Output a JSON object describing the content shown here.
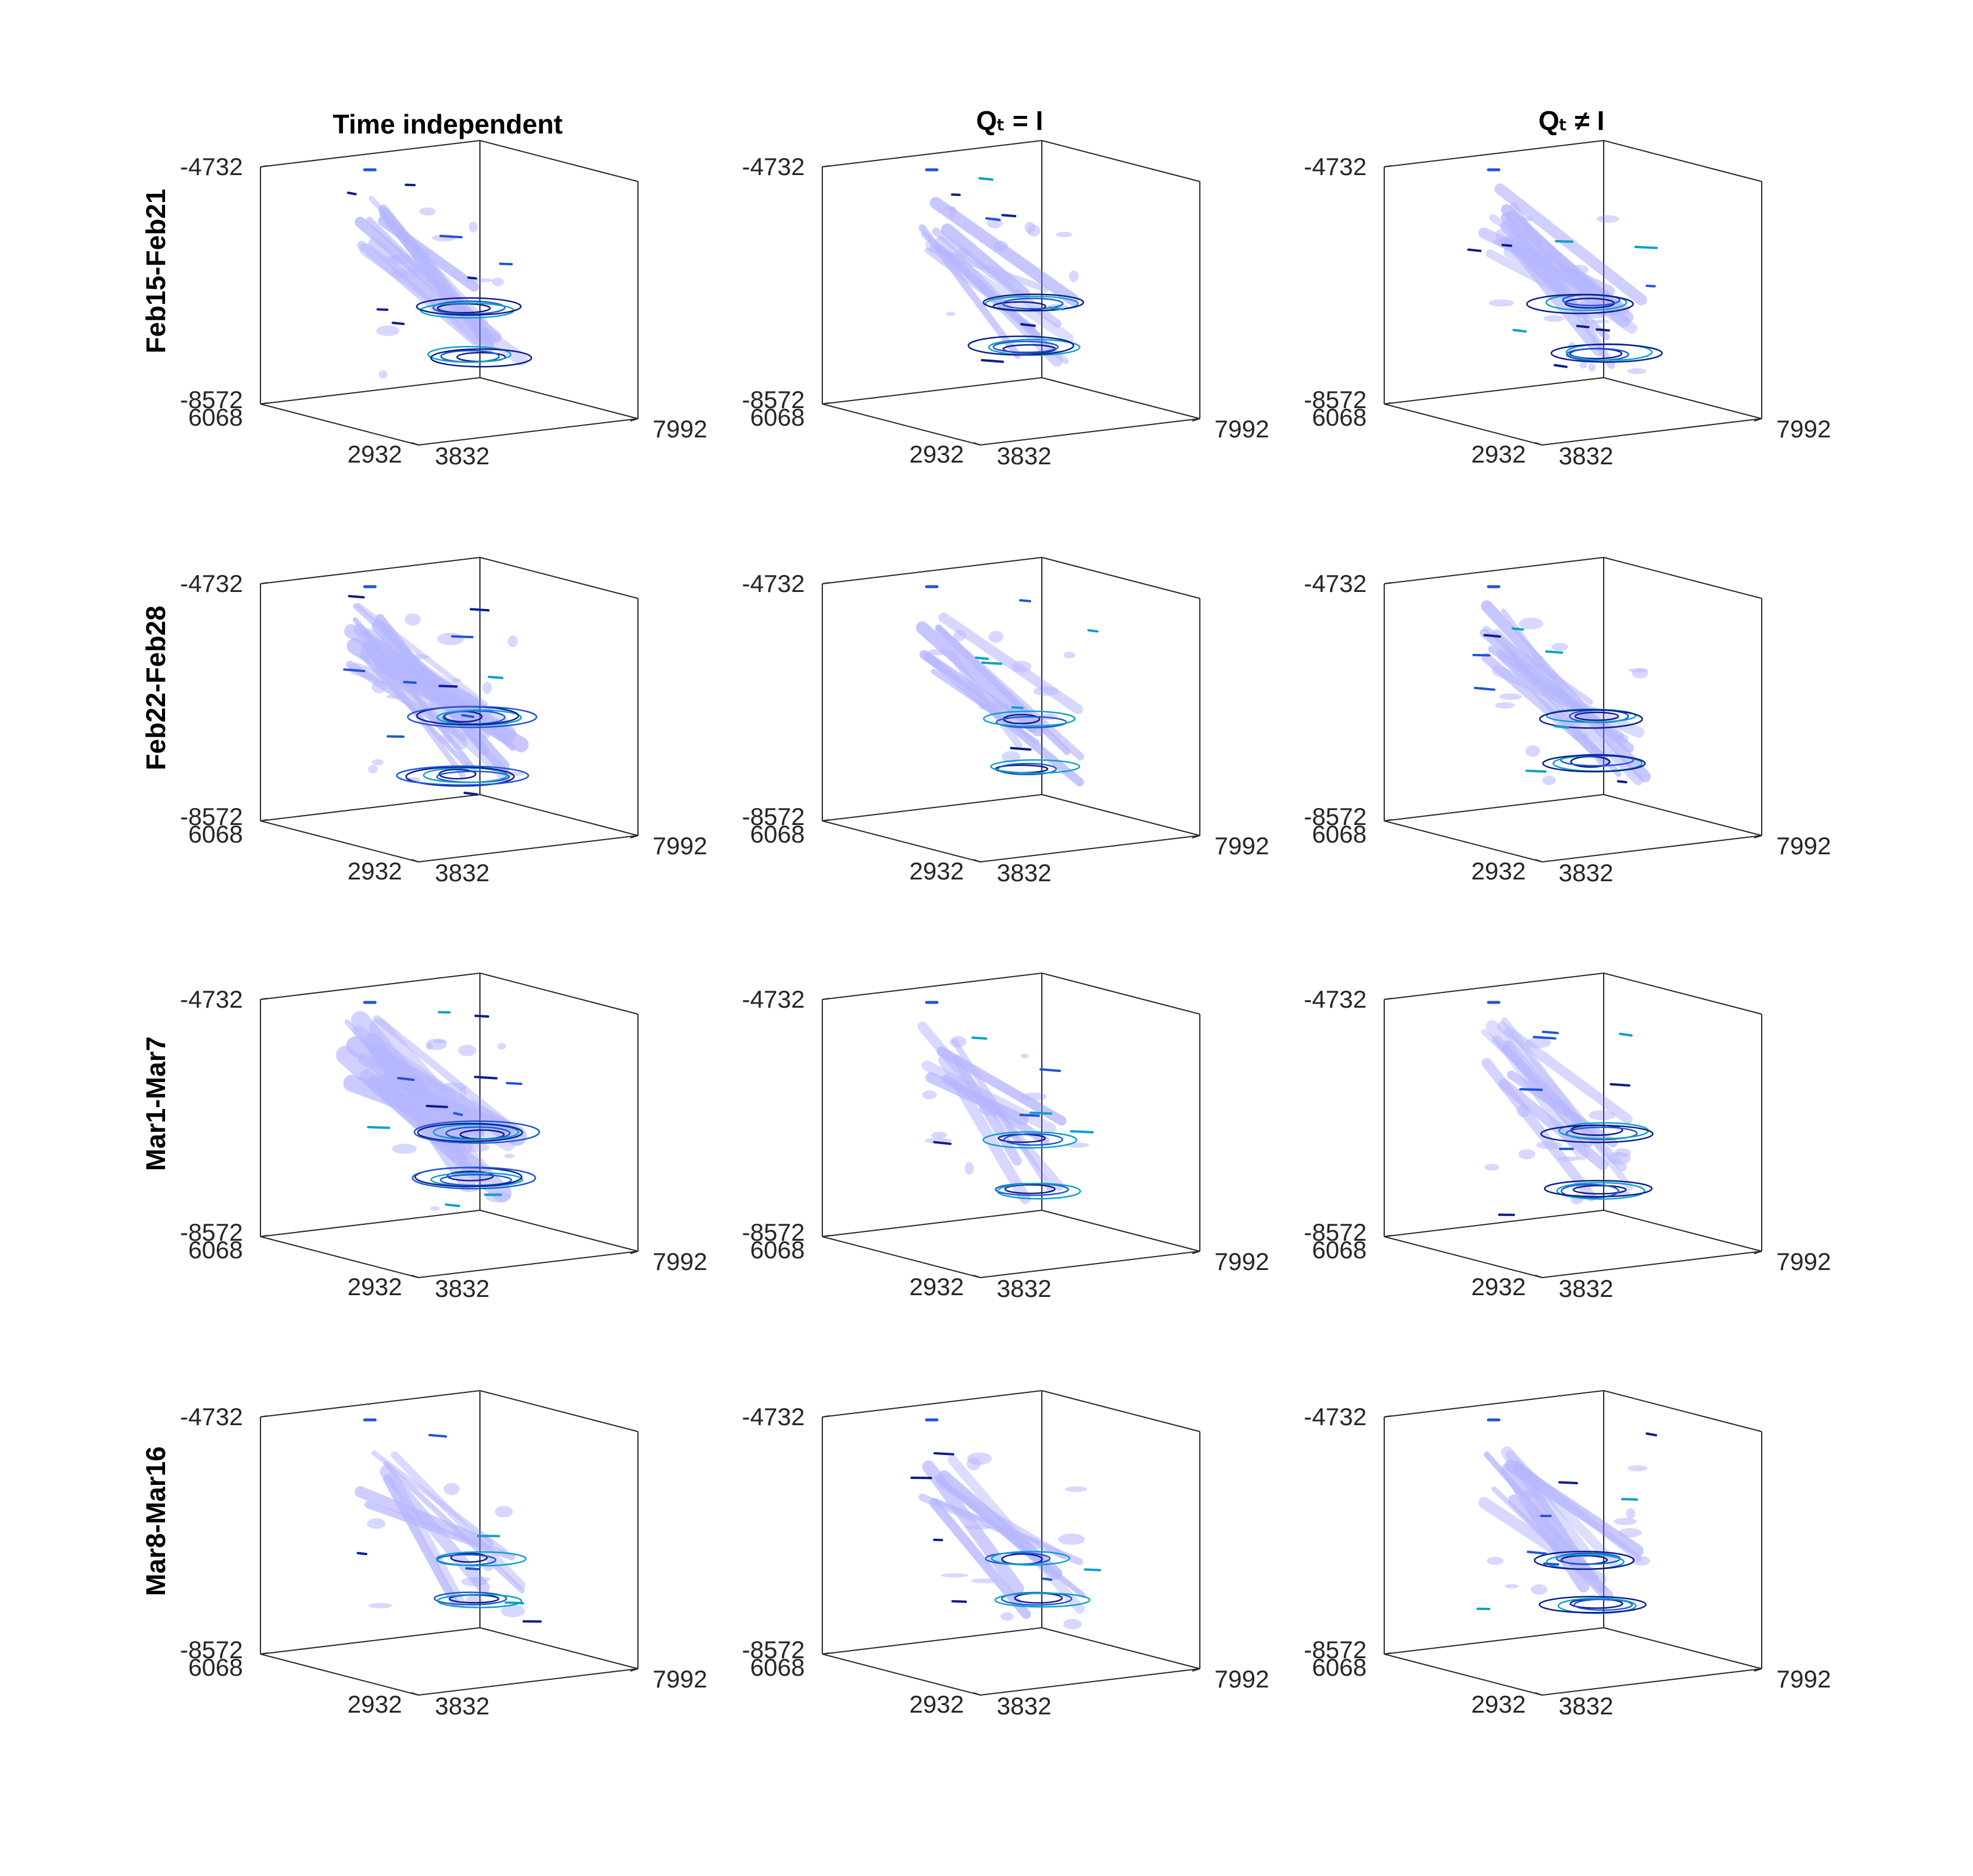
{
  "chart_data": {
    "type": "3d-isosurface-grid",
    "columns": [
      {
        "title": "Time independent"
      },
      {
        "title": "Qₜ = I"
      },
      {
        "title": "Qₜ ≠ I"
      }
    ],
    "rows": [
      {
        "label": "Feb15-Feb21"
      },
      {
        "label": "Feb22-Feb28"
      },
      {
        "label": "Mar1-Mar7"
      },
      {
        "label": "Mar8-Mar16"
      }
    ],
    "axes": {
      "z_ticks": [
        "-4732",
        "-8572"
      ],
      "x_ticks": [
        "6068",
        "2932"
      ],
      "y_ticks": [
        "3832",
        "7992"
      ],
      "zlim": [
        -8572,
        -4732
      ],
      "xlim": [
        2932,
        6068
      ],
      "ylim": [
        3832,
        7992
      ]
    },
    "colors": {
      "surface": "#7b7bff",
      "contour_dark": "#0b1d8a",
      "contour_mid": "#1f55d6",
      "contour_light": "#0aa0c8",
      "axis": "#262626"
    },
    "panel_density": [
      [
        0.55,
        0.5,
        0.75
      ],
      [
        1.0,
        0.35,
        0.6
      ],
      [
        1.0,
        0.35,
        0.5
      ],
      [
        0.35,
        0.35,
        0.5
      ]
    ]
  }
}
